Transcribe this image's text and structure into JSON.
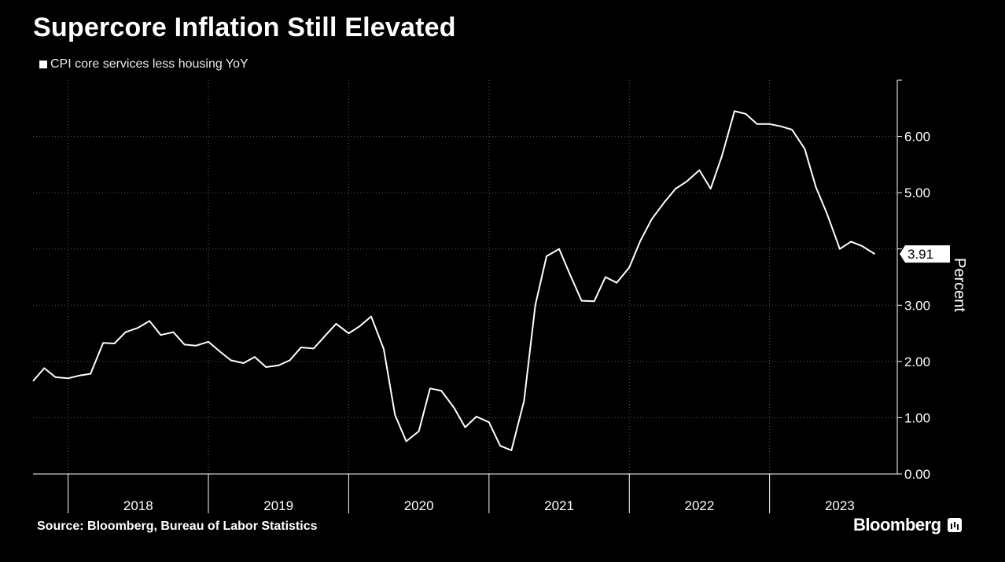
{
  "chart_data": {
    "type": "line",
    "title": "Supercore Inflation Still Elevated",
    "source": "Source: Bloomberg, Bureau of Labor Statistics",
    "brand": "Bloomberg",
    "ylabel": "Percent",
    "ylim": [
      0,
      7
    ],
    "yticks": [
      0,
      1,
      2,
      3,
      4,
      5,
      6
    ],
    "ytick_labels": [
      "0.00",
      "1.00",
      "2.00",
      "3.00",
      "",
      "5.00",
      "6.00"
    ],
    "xlim": [
      2017.42,
      2023.58
    ],
    "year_labels": [
      "2018",
      "2019",
      "2020",
      "2021",
      "2022",
      "2023"
    ],
    "year_boundaries": [
      2017.67,
      2018.67,
      2019.67,
      2020.67,
      2021.67,
      2022.67
    ],
    "grid": true,
    "last_value_label": "3.91",
    "series": [
      {
        "name": "CPI core services less housing YoY",
        "color": "#ffffff",
        "x": [
          2017.42,
          2017.5,
          2017.58,
          2017.67,
          2017.75,
          2017.83,
          2017.92,
          2018.0,
          2018.08,
          2018.17,
          2018.25,
          2018.33,
          2018.42,
          2018.5,
          2018.58,
          2018.67,
          2018.75,
          2018.83,
          2018.92,
          2019.0,
          2019.08,
          2019.17,
          2019.25,
          2019.33,
          2019.42,
          2019.5,
          2019.58,
          2019.67,
          2019.75,
          2019.83,
          2019.92,
          2020.0,
          2020.08,
          2020.17,
          2020.25,
          2020.33,
          2020.42,
          2020.5,
          2020.58,
          2020.67,
          2020.75,
          2020.83,
          2020.92,
          2021.0,
          2021.08,
          2021.17,
          2021.25,
          2021.33,
          2021.42,
          2021.5,
          2021.58,
          2021.67,
          2021.75,
          2021.83,
          2021.92,
          2022.0,
          2022.08,
          2022.17,
          2022.25,
          2022.33,
          2022.42,
          2022.5,
          2022.58,
          2022.67,
          2022.75,
          2022.83,
          2022.92,
          2023.0,
          2023.08,
          2023.17,
          2023.25,
          2023.33,
          2023.42
        ],
        "values": [
          1.65,
          1.88,
          1.72,
          1.7,
          1.75,
          1.78,
          2.33,
          2.32,
          2.52,
          2.6,
          2.72,
          2.47,
          2.52,
          2.3,
          2.28,
          2.35,
          2.18,
          2.02,
          1.97,
          2.08,
          1.9,
          1.93,
          2.02,
          2.25,
          2.23,
          2.45,
          2.67,
          2.5,
          2.63,
          2.8,
          2.22,
          1.05,
          0.58,
          0.76,
          1.52,
          1.48,
          1.18,
          0.83,
          1.02,
          0.92,
          0.5,
          0.42,
          1.3,
          3.0,
          3.87,
          4.0,
          3.53,
          3.08,
          3.07,
          3.5,
          3.4,
          3.67,
          4.15,
          4.53,
          4.83,
          5.07,
          5.2,
          5.4,
          5.07,
          5.65,
          6.45,
          6.4,
          6.22,
          6.22,
          6.18,
          6.12,
          5.78,
          5.1,
          4.62,
          4.0,
          4.13,
          4.05,
          3.91
        ]
      }
    ]
  }
}
